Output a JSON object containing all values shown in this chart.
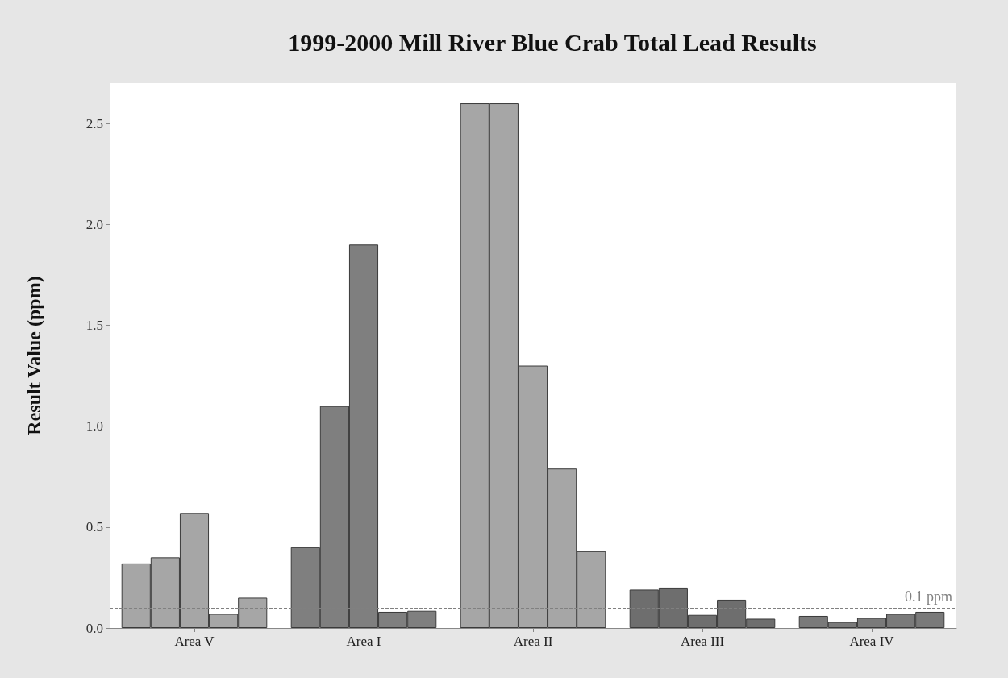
{
  "chart_data": {
    "type": "bar",
    "title": "1999-2000 Mill River Blue Crab Total Lead Results",
    "ylabel": "Result Value (ppm)",
    "categories": [
      "Area V",
      "Area I",
      "Area II",
      "Area III",
      "Area IV"
    ],
    "series": [
      {
        "colors": [
          "#a6a6a6",
          "#7f7f7f",
          "#a6a6a6",
          "#6e6e6e",
          "#7a7a7a"
        ],
        "values": [
          0.32,
          0.4,
          2.6,
          0.19,
          0.06
        ]
      },
      {
        "colors": [
          "#a6a6a6",
          "#7f7f7f",
          "#a6a6a6",
          "#6e6e6e",
          "#7a7a7a"
        ],
        "values": [
          0.35,
          1.1,
          2.6,
          0.2,
          0.03
        ]
      },
      {
        "colors": [
          "#a6a6a6",
          "#7f7f7f",
          "#a6a6a6",
          "#6e6e6e",
          "#7a7a7a"
        ],
        "values": [
          0.57,
          1.9,
          1.3,
          0.065,
          0.05
        ]
      },
      {
        "colors": [
          "#a6a6a6",
          "#7f7f7f",
          "#a6a6a6",
          "#6e6e6e",
          "#7a7a7a"
        ],
        "values": [
          0.07,
          0.08,
          0.79,
          0.14,
          0.07
        ]
      },
      {
        "colors": [
          "#a6a6a6",
          "#7f7f7f",
          "#a6a6a6",
          "#6e6e6e",
          "#7a7a7a"
        ],
        "values": [
          0.15,
          0.085,
          0.38,
          0.046,
          0.08
        ]
      }
    ],
    "ylim": [
      0,
      2.7
    ],
    "yticks": [
      {
        "value": 0,
        "label": "0.0"
      },
      0.5,
      {
        "value": 1,
        "label": "1.0"
      },
      1.5,
      {
        "value": 2,
        "label": "2.0"
      },
      2.5
    ],
    "ref_lines": [
      {
        "axis": "y",
        "value": 0.1,
        "label": "0.1 ppm",
        "color": "#808080",
        "line_style": "dashed"
      }
    ],
    "grid": false
  }
}
